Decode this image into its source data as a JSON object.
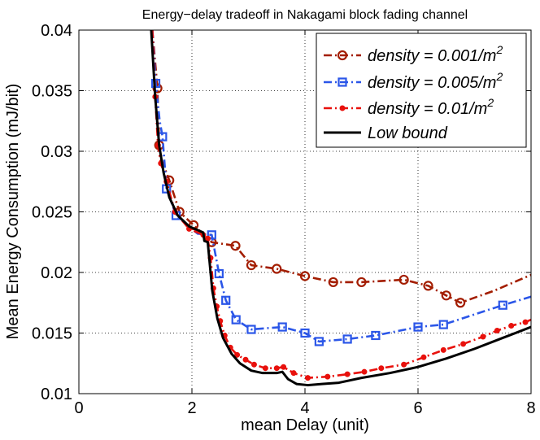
{
  "chart_data": {
    "type": "line",
    "title": "Energy−delay tradeoff in Nakagami block fading channel",
    "xlabel": "mean Delay (unit)",
    "ylabel": "Mean Energy Consumption (mJ/bit)",
    "xlim": [
      0,
      8
    ],
    "ylim": [
      0.01,
      0.04
    ],
    "xticks": [
      0,
      2,
      4,
      6,
      8
    ],
    "yticks": [
      0.01,
      0.015,
      0.02,
      0.025,
      0.03,
      0.035,
      0.04
    ],
    "xtick_labels": [
      "0",
      "2",
      "4",
      "6",
      "8"
    ],
    "ytick_labels": [
      "0.01",
      "0.015",
      "0.02",
      "0.025",
      "0.03",
      "0.035",
      "0.04"
    ],
    "grid": true,
    "legend_position": "top-right",
    "series": [
      {
        "name": "density = 0.001/m",
        "superscript": "2",
        "color": "#a31d00",
        "dash": "dashdot",
        "marker": "circle",
        "marker_fill": "none",
        "x": [
          1.3,
          1.39,
          1.42,
          1.47,
          1.6,
          1.78,
          2.03,
          2.35,
          2.77,
          3.05,
          3.5,
          4.0,
          4.5,
          5.0,
          5.75,
          6.18,
          6.5,
          6.75,
          7.35,
          8.0
        ],
        "y": [
          0.04,
          0.0352,
          0.0305,
          0.0292,
          0.0276,
          0.025,
          0.0239,
          0.0225,
          0.0222,
          0.0206,
          0.0203,
          0.0197,
          0.0192,
          0.0192,
          0.0194,
          0.0189,
          0.0181,
          0.0175,
          0.0185,
          0.0198
        ],
        "marker_indices": [
          1,
          2,
          4,
          5,
          6,
          7,
          8,
          9,
          10,
          11,
          12,
          13,
          14,
          15,
          16,
          17
        ]
      },
      {
        "name": "density = 0.005/m",
        "superscript": "2",
        "color": "#2b56e8",
        "dash": "dashdot",
        "marker": "square",
        "marker_fill": "none",
        "x": [
          1.3,
          1.36,
          1.43,
          1.48,
          1.55,
          1.72,
          1.95,
          2.1,
          2.35,
          2.48,
          2.6,
          2.78,
          3.05,
          3.6,
          4.0,
          4.25,
          4.75,
          5.25,
          6.0,
          6.45,
          7.5,
          8.0
        ],
        "y": [
          0.04,
          0.0356,
          0.0325,
          0.0312,
          0.0269,
          0.0247,
          0.0238,
          0.0232,
          0.0231,
          0.0199,
          0.0177,
          0.0161,
          0.0153,
          0.0155,
          0.015,
          0.0143,
          0.0145,
          0.0148,
          0.0155,
          0.0157,
          0.0173,
          0.018
        ],
        "marker_indices": [
          1,
          3,
          4,
          5,
          8,
          9,
          10,
          11,
          12,
          13,
          14,
          15,
          16,
          17,
          18,
          19,
          20
        ]
      },
      {
        "name": "density = 0.01/m",
        "superscript": "2",
        "color": "#e8110c",
        "dash": "dashdot",
        "marker": "dot",
        "marker_fill": "#e8110c",
        "x": [
          1.3,
          1.35,
          1.4,
          1.45,
          1.55,
          1.7,
          1.95,
          2.2,
          2.28,
          2.33,
          2.38,
          2.44,
          2.5,
          2.58,
          2.68,
          2.8,
          2.95,
          3.1,
          3.3,
          3.5,
          3.62,
          3.8,
          4.05,
          4.4,
          4.75,
          5.05,
          5.35,
          5.75,
          6.1,
          6.45,
          6.8,
          7.15,
          7.4,
          7.65,
          7.9,
          8.0
        ],
        "y": [
          0.04,
          0.0345,
          0.0305,
          0.029,
          0.0275,
          0.025,
          0.0236,
          0.0231,
          0.0228,
          0.0212,
          0.0187,
          0.0172,
          0.016,
          0.0148,
          0.0138,
          0.0132,
          0.0128,
          0.0124,
          0.0121,
          0.0121,
          0.0122,
          0.0117,
          0.0113,
          0.0114,
          0.0116,
          0.0118,
          0.0121,
          0.0124,
          0.013,
          0.0136,
          0.0141,
          0.0147,
          0.0152,
          0.0156,
          0.0159,
          0.0161
        ],
        "marker_indices": [
          1,
          2,
          3,
          4,
          5,
          6,
          7,
          8,
          9,
          10,
          11,
          12,
          13,
          14,
          15,
          16,
          17,
          18,
          19,
          20,
          21,
          22,
          23,
          24,
          25,
          26,
          27,
          28,
          29,
          30,
          31,
          32,
          33,
          34
        ]
      },
      {
        "name": "Low bound",
        "superscript": "",
        "color": "#000000",
        "dash": "solid",
        "marker": "none",
        "marker_fill": "none",
        "x": [
          1.28,
          1.35,
          1.42,
          1.5,
          1.6,
          1.75,
          1.95,
          2.2,
          2.22,
          2.28,
          2.36,
          2.45,
          2.55,
          2.7,
          2.85,
          3.05,
          3.25,
          3.5,
          3.6,
          3.7,
          3.85,
          4.05,
          4.3,
          4.6,
          5.0,
          5.5,
          6.0,
          6.5,
          7.0,
          7.5,
          8.0
        ],
        "y": [
          0.04,
          0.0345,
          0.0305,
          0.0282,
          0.0262,
          0.0247,
          0.0238,
          0.0233,
          0.0226,
          0.0225,
          0.0185,
          0.0162,
          0.0146,
          0.0133,
          0.0125,
          0.0119,
          0.0117,
          0.0117,
          0.0118,
          0.0112,
          0.0108,
          0.0107,
          0.0108,
          0.0109,
          0.0113,
          0.0117,
          0.0122,
          0.0129,
          0.0137,
          0.0146,
          0.0155
        ]
      }
    ]
  }
}
